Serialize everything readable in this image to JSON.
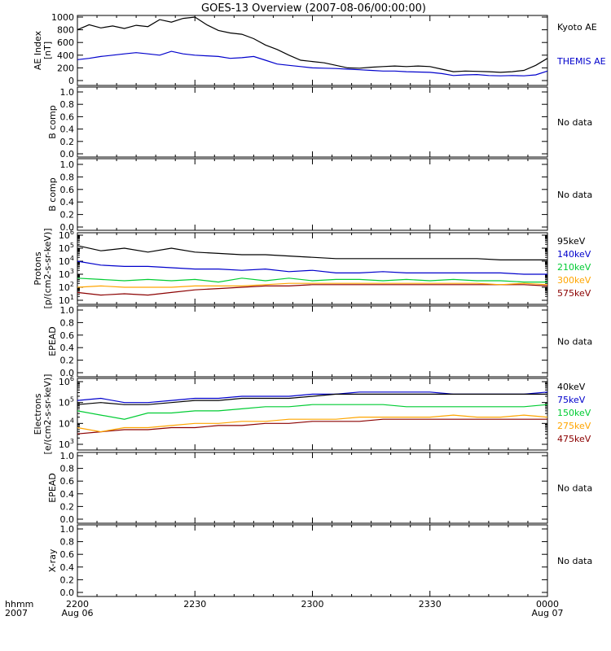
{
  "title": "GOES-13 Overview (2007-08-06/00:00:00)",
  "time_axis": {
    "corner_label_1": "hhmm",
    "corner_label_2": "2007",
    "ticks": [
      {
        "t": 0,
        "label": "2200",
        "sublabel": "Aug 06"
      },
      {
        "t": 30,
        "label": "2230",
        "sublabel": ""
      },
      {
        "t": 60,
        "label": "2300",
        "sublabel": ""
      },
      {
        "t": 90,
        "label": "2330",
        "sublabel": ""
      },
      {
        "t": 120,
        "label": "0000",
        "sublabel": "Aug 07"
      }
    ],
    "range_minutes": [
      0,
      120
    ]
  },
  "chart_data": [
    {
      "type": "line",
      "id": "ae",
      "ylabel": "AE Index",
      "ylabel2": "[nT]",
      "ylim": [
        0,
        1000
      ],
      "yticks": [
        "0",
        "200",
        "400",
        "600",
        "800",
        "1000"
      ],
      "x_minutes": [
        0,
        3,
        6,
        9,
        12,
        15,
        18,
        21,
        24,
        27,
        30,
        33,
        36,
        39,
        42,
        45,
        48,
        51,
        54,
        57,
        60,
        63,
        66,
        69,
        72,
        75,
        78,
        81,
        84,
        87,
        90,
        93,
        96,
        99,
        102,
        105,
        108,
        111,
        114,
        117,
        120
      ],
      "series": [
        {
          "name": "Kyoto AE",
          "color": "#000000",
          "values": [
            800,
            880,
            830,
            860,
            820,
            870,
            850,
            960,
            920,
            980,
            1000,
            880,
            790,
            750,
            730,
            660,
            560,
            490,
            400,
            320,
            300,
            280,
            240,
            200,
            195,
            210,
            220,
            230,
            220,
            230,
            220,
            180,
            140,
            150,
            145,
            140,
            130,
            140,
            160,
            240,
            350
          ]
        },
        {
          "name": "THEMIS AE",
          "color": "#0000cc",
          "values": [
            330,
            350,
            380,
            400,
            420,
            440,
            420,
            400,
            460,
            420,
            400,
            390,
            380,
            350,
            360,
            380,
            320,
            260,
            240,
            220,
            200,
            195,
            190,
            180,
            170,
            160,
            150,
            150,
            140,
            135,
            130,
            110,
            80,
            90,
            95,
            80,
            75,
            80,
            75,
            90,
            150
          ]
        }
      ]
    },
    {
      "type": "line",
      "id": "bcomp1",
      "ylabel": "B comp",
      "ylim": [
        0,
        1
      ],
      "yticks": [
        "0.0",
        "0.2",
        "0.4",
        "0.6",
        "0.8",
        "1.0"
      ],
      "no_data": "No data",
      "series": []
    },
    {
      "type": "line",
      "id": "bcomp2",
      "ylabel": "B comp",
      "ylim": [
        0,
        1
      ],
      "yticks": [
        "0.0",
        "0.2",
        "0.4",
        "0.6",
        "0.8",
        "1.0"
      ],
      "no_data": "No data",
      "series": []
    },
    {
      "type": "line",
      "id": "protons",
      "ylabel": "Protons",
      "ylabel2": "[p/(cm2-s-sr-keV)]",
      "scale": "log",
      "ylim_log10": [
        1,
        6
      ],
      "yticks": [
        "10^1",
        "10^2",
        "10^3",
        "10^4",
        "10^5",
        "10^6"
      ],
      "x_minutes": [
        0,
        6,
        12,
        18,
        24,
        30,
        36,
        42,
        48,
        54,
        60,
        66,
        72,
        78,
        84,
        90,
        96,
        102,
        108,
        114,
        120
      ],
      "series": [
        {
          "name": "575keV",
          "color": "#8b0000",
          "values_log10": [
            1.6,
            1.4,
            1.5,
            1.4,
            1.6,
            1.8,
            1.9,
            2.0,
            2.1,
            2.1,
            2.2,
            2.2,
            2.2,
            2.2,
            2.2,
            2.2,
            2.2,
            2.2,
            2.2,
            2.2,
            2.1
          ]
        },
        {
          "name": "300keV",
          "color": "#ffa500",
          "values_log10": [
            2.0,
            2.1,
            2.0,
            2.0,
            2.0,
            2.1,
            2.1,
            2.1,
            2.2,
            2.3,
            2.3,
            2.3,
            2.3,
            2.3,
            2.3,
            2.3,
            2.3,
            2.3,
            2.2,
            2.3,
            2.2
          ]
        },
        {
          "name": "210keV",
          "color": "#00cc33",
          "values_log10": [
            2.7,
            2.6,
            2.5,
            2.6,
            2.5,
            2.6,
            2.4,
            2.7,
            2.5,
            2.7,
            2.5,
            2.6,
            2.6,
            2.5,
            2.6,
            2.5,
            2.6,
            2.5,
            2.5,
            2.4,
            2.4
          ]
        },
        {
          "name": "140keV",
          "color": "#0000cc",
          "values_log10": [
            4.0,
            3.7,
            3.6,
            3.6,
            3.5,
            3.4,
            3.4,
            3.3,
            3.4,
            3.2,
            3.3,
            3.1,
            3.1,
            3.2,
            3.1,
            3.1,
            3.1,
            3.1,
            3.1,
            3.0,
            3.0
          ]
        },
        {
          "name": "95keV",
          "color": "#000000",
          "values_log10": [
            5.2,
            4.8,
            5.0,
            4.7,
            5.0,
            4.7,
            4.6,
            4.5,
            4.5,
            4.4,
            4.3,
            4.2,
            4.2,
            4.2,
            4.2,
            4.2,
            4.2,
            4.2,
            4.1,
            4.1,
            4.1
          ]
        }
      ]
    },
    {
      "type": "line",
      "id": "epead1",
      "ylabel": "EPEAD",
      "ylim": [
        0,
        1
      ],
      "yticks": [
        "0.0",
        "0.2",
        "0.4",
        "0.6",
        "0.8",
        "1.0"
      ],
      "no_data": "No data",
      "series": []
    },
    {
      "type": "line",
      "id": "electrons",
      "ylabel": "Electrons",
      "ylabel2": "[e/(cm2-s-sr-keV)]",
      "scale": "log",
      "ylim_log10": [
        3,
        6
      ],
      "yticks": [
        "10^3",
        "10^4",
        "10^5",
        "10^6"
      ],
      "x_minutes": [
        0,
        6,
        12,
        18,
        24,
        30,
        36,
        42,
        48,
        54,
        60,
        66,
        72,
        78,
        84,
        90,
        96,
        102,
        108,
        114,
        120
      ],
      "series": [
        {
          "name": "475keV",
          "color": "#8b0000",
          "values_log10": [
            3.5,
            3.6,
            3.7,
            3.7,
            3.8,
            3.8,
            3.9,
            3.9,
            4.0,
            4.0,
            4.1,
            4.1,
            4.1,
            4.2,
            4.2,
            4.2,
            4.2,
            4.2,
            4.2,
            4.2,
            4.2
          ]
        },
        {
          "name": "275keV",
          "color": "#ffa500",
          "values_log10": [
            3.8,
            3.6,
            3.8,
            3.8,
            3.9,
            4.0,
            4.0,
            4.1,
            4.1,
            4.2,
            4.2,
            4.2,
            4.3,
            4.3,
            4.3,
            4.3,
            4.4,
            4.3,
            4.3,
            4.4,
            4.3
          ]
        },
        {
          "name": "150keV",
          "color": "#00cc33",
          "values_log10": [
            4.6,
            4.4,
            4.2,
            4.5,
            4.5,
            4.6,
            4.6,
            4.7,
            4.8,
            4.8,
            4.9,
            4.9,
            4.9,
            4.9,
            4.8,
            4.8,
            4.8,
            4.8,
            4.8,
            4.8,
            4.9
          ]
        },
        {
          "name": "75keV",
          "color": "#0000cc",
          "values_log10": [
            5.1,
            5.2,
            5.0,
            5.0,
            5.1,
            5.2,
            5.2,
            5.3,
            5.3,
            5.3,
            5.4,
            5.4,
            5.5,
            5.5,
            5.5,
            5.5,
            5.4,
            5.4,
            5.4,
            5.4,
            5.5
          ]
        },
        {
          "name": "40keV",
          "color": "#000000",
          "values_log10": [
            4.9,
            5.0,
            4.9,
            4.9,
            5.0,
            5.1,
            5.1,
            5.2,
            5.2,
            5.2,
            5.3,
            5.4,
            5.4,
            5.4,
            5.4,
            5.4,
            5.4,
            5.4,
            5.4,
            5.4,
            5.4
          ]
        }
      ]
    },
    {
      "type": "line",
      "id": "epead2",
      "ylabel": "EPEAD",
      "ylim": [
        0,
        1
      ],
      "yticks": [
        "0.0",
        "0.2",
        "0.4",
        "0.6",
        "0.8",
        "1.0"
      ],
      "no_data": "No data",
      "series": []
    },
    {
      "type": "line",
      "id": "xray",
      "ylabel": "X-ray",
      "ylim": [
        0,
        1
      ],
      "yticks": [
        "0.0",
        "0.2",
        "0.4",
        "0.6",
        "0.8",
        "1.0"
      ],
      "no_data": "No data",
      "series": []
    }
  ]
}
